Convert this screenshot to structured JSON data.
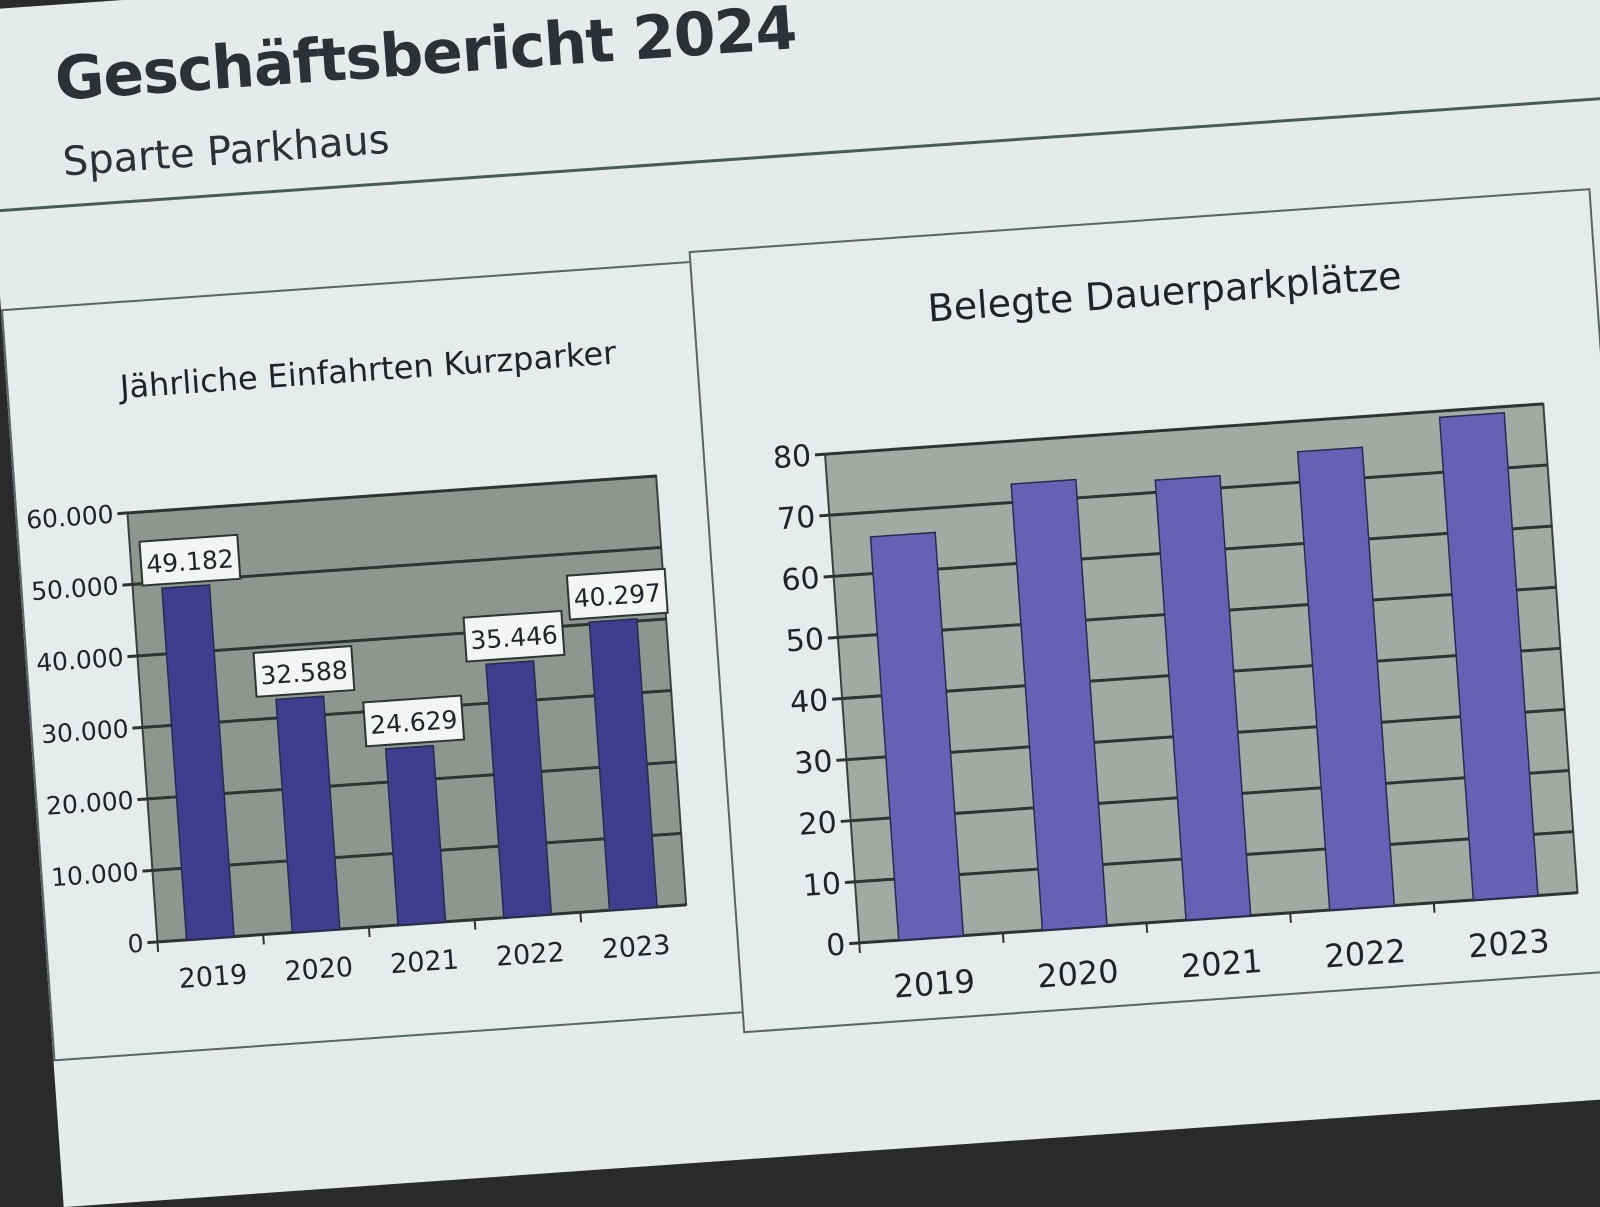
{
  "slide": {
    "title": "Geschäftsbericht 2024",
    "subtitle": "Sparte Parkhaus"
  },
  "chart_data": [
    {
      "type": "bar",
      "title": "Jährliche Einfahrten Kurzparker",
      "categories": [
        "2019",
        "2020",
        "2021",
        "2022",
        "2023"
      ],
      "values": [
        49182,
        32588,
        24629,
        35446,
        40297
      ],
      "data_labels": [
        "49.182",
        "32.588",
        "24.629",
        "35.446",
        "40.297"
      ],
      "yticks": [
        "0",
        "10.000",
        "20.000",
        "30.000",
        "40.000",
        "50.000",
        "60.000"
      ],
      "ylim": [
        0,
        60000
      ],
      "grid": true,
      "legend": "none",
      "bar_color": "#3f3d8e",
      "plot_bg": "#8f968f"
    },
    {
      "type": "bar",
      "title": "Belegte Dauerparkplätze",
      "categories": [
        "2019",
        "2020",
        "2021",
        "2022",
        "2023"
      ],
      "values": [
        66,
        73,
        72,
        75,
        79
      ],
      "yticks": [
        "0",
        "10",
        "20",
        "30",
        "40",
        "50",
        "60",
        "70",
        "80"
      ],
      "ylim": [
        0,
        80
      ],
      "grid": true,
      "legend": "none",
      "bar_color": "#6760b4",
      "plot_bg": "#a3a9a3"
    }
  ]
}
